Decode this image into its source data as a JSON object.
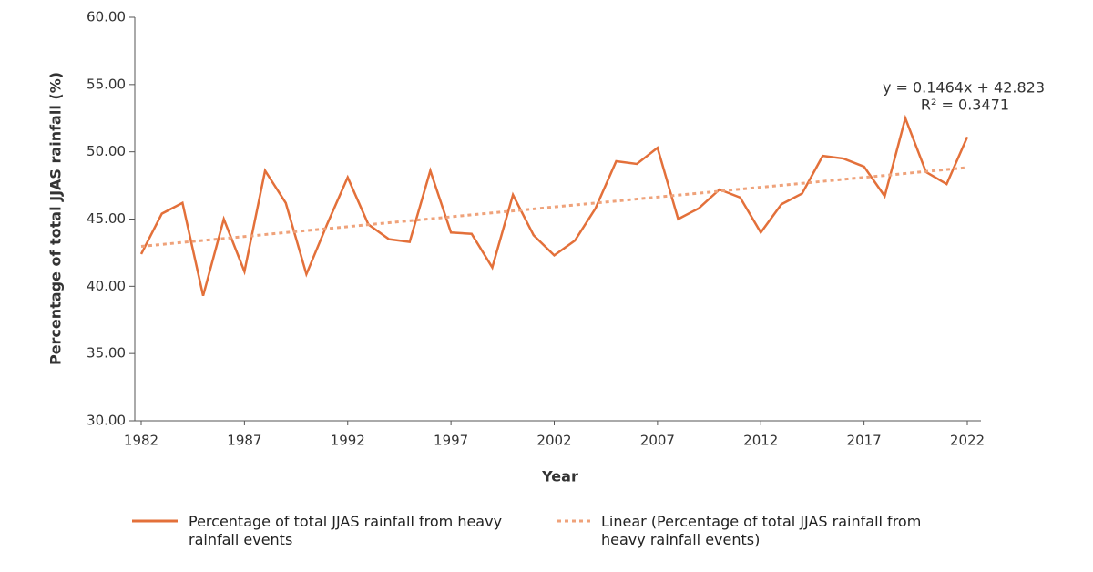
{
  "chart_data": {
    "type": "line",
    "x": [
      1982,
      1983,
      1984,
      1985,
      1986,
      1987,
      1988,
      1989,
      1990,
      1991,
      1992,
      1993,
      1994,
      1995,
      1996,
      1997,
      1998,
      1999,
      2000,
      2001,
      2002,
      2003,
      2004,
      2005,
      2006,
      2007,
      2008,
      2009,
      2010,
      2011,
      2012,
      2013,
      2014,
      2015,
      2016,
      2017,
      2018,
      2019,
      2020,
      2021,
      2022
    ],
    "series": [
      {
        "name": "Percentage of total JJAS rainfall from heavy rainfall events",
        "color": "#e3703a",
        "style": "solid",
        "values": [
          42.4,
          45.4,
          46.2,
          39.3,
          45.0,
          41.1,
          48.6,
          46.2,
          40.9,
          44.6,
          48.1,
          44.6,
          43.5,
          43.3,
          48.6,
          44.0,
          43.9,
          41.4,
          46.8,
          43.8,
          42.3,
          43.4,
          45.8,
          49.3,
          49.1,
          50.3,
          45.0,
          45.8,
          47.2,
          46.6,
          44.0,
          46.1,
          46.9,
          49.7,
          49.5,
          48.9,
          46.7,
          52.5,
          48.5,
          47.6,
          51.1
        ]
      },
      {
        "name": "Linear (Percentage of total JJAS rainfall from heavy rainfall events)",
        "color": "#efa27a",
        "style": "dotted",
        "x": [
          1982,
          2022
        ],
        "values": [
          42.97,
          48.83
        ]
      }
    ],
    "annotations": [
      "y = 0.1464x + 42.823",
      "R² = 0.3471"
    ],
    "xlabel": "Year",
    "ylabel": "Percentage of total JJAS rainfall (%)",
    "xlim": [
      1982,
      2022
    ],
    "xticks": [
      1982,
      1987,
      1992,
      1997,
      2002,
      2007,
      2012,
      2017,
      2022
    ],
    "ylim": [
      30,
      60
    ],
    "yticks": [
      {
        "value": 30,
        "label": "30.00"
      },
      {
        "value": 35,
        "label": "35.00"
      },
      {
        "value": 40,
        "label": "40.00"
      },
      {
        "value": 45,
        "label": "45.00"
      },
      {
        "value": 50,
        "label": "50.00"
      },
      {
        "value": 55,
        "label": "55.00"
      },
      {
        "value": 60,
        "label": "60.00"
      }
    ],
    "grid": false,
    "legend": "bottom"
  }
}
